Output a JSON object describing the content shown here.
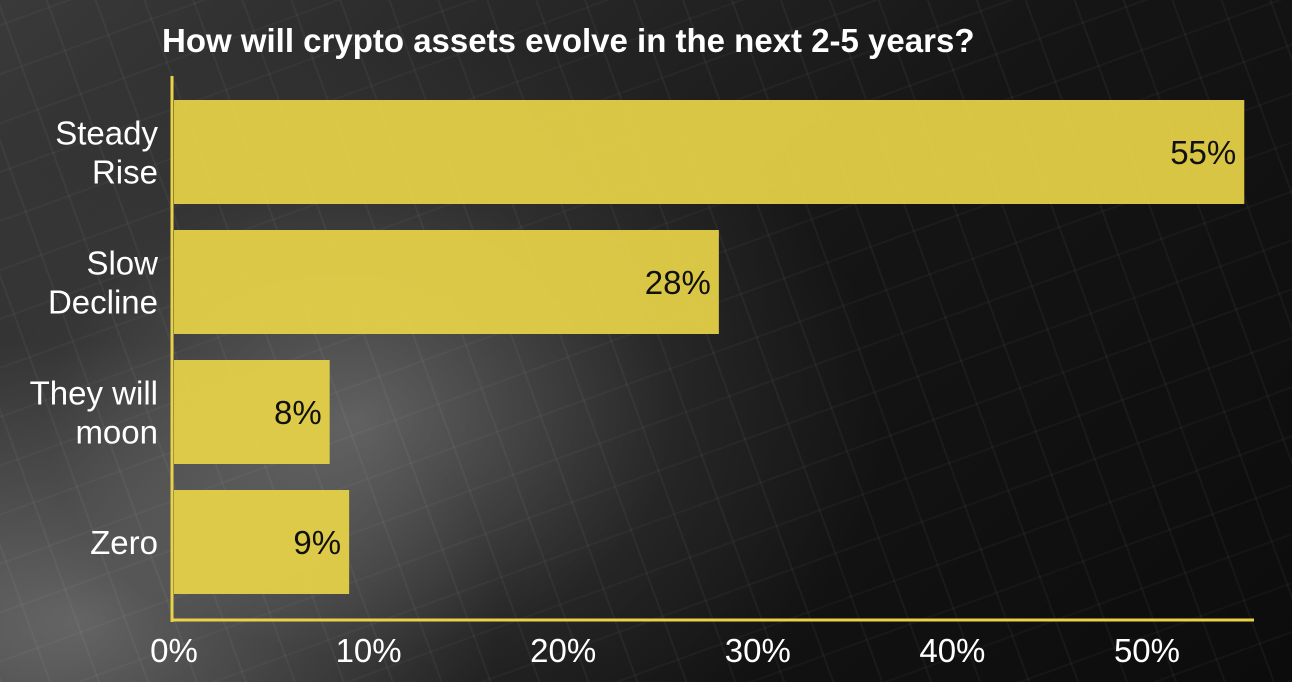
{
  "chart_data": {
    "type": "bar",
    "orientation": "horizontal",
    "title": "How will crypto assets evolve in the next 2-5 years?",
    "categories": [
      [
        "Steady",
        "Rise"
      ],
      [
        "Slow",
        "Decline"
      ],
      [
        "They will",
        "moon"
      ],
      [
        "Zero"
      ]
    ],
    "values": [
      55,
      28,
      8,
      9
    ],
    "value_labels": [
      "55%",
      "28%",
      "8%",
      "9%"
    ],
    "x_ticks": [
      0,
      10,
      20,
      30,
      40,
      50
    ],
    "x_tick_labels": [
      "0%",
      "10%",
      "20%",
      "30%",
      "40%",
      "50%"
    ],
    "xlim": [
      0,
      55.5
    ],
    "grid": false,
    "colors": {
      "bar": "#e8d348",
      "axis": "#e8d348",
      "text": "#ffffff",
      "value_text": "#111111"
    }
  }
}
